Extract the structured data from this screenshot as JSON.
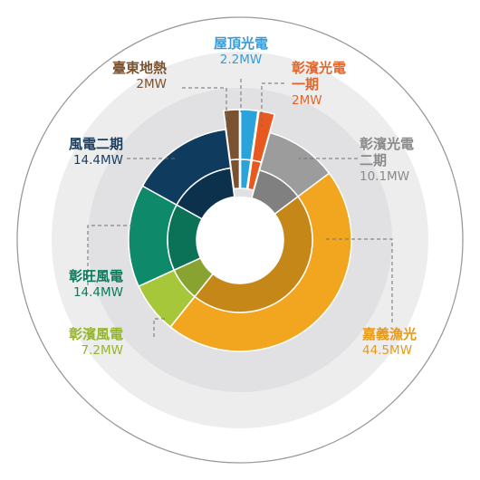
{
  "chart_data": {
    "type": "pie",
    "variant": "donut",
    "unit": "MW",
    "start_angle_deg": 0,
    "direction": "clockwise",
    "series": [
      {
        "name": "屋頂光電",
        "value": 2.2,
        "label": "2.2MW",
        "color": "#2aa3db",
        "exploded": true
      },
      {
        "name": "彰濱光電一期",
        "value": 2,
        "label": "2MW",
        "color": "#e8591f",
        "exploded": true
      },
      {
        "name": "彰濱光電二期",
        "value": 10.1,
        "label": "10.1MW",
        "color": "#9c9c9c",
        "exploded": false
      },
      {
        "name": "嘉義漁光",
        "value": 44.5,
        "label": "44.5MW",
        "color": "#f2a51e",
        "exploded": false
      },
      {
        "name": "彰濱風電",
        "value": 7.2,
        "label": "7.2MW",
        "color": "#a6c73a",
        "exploded": false
      },
      {
        "name": "彰旺風電",
        "value": 14.4,
        "label": "14.4MW",
        "color": "#0e8a6a",
        "exploded": false
      },
      {
        "name": "風電二期",
        "value": 14.4,
        "label": "14.4MW",
        "color": "#0f3c5e",
        "exploded": false
      },
      {
        "name": "臺東地熱",
        "value": 2,
        "label": "2MW",
        "color": "#7a5230",
        "exploded": true
      }
    ]
  },
  "labels": {
    "rooftop": {
      "name": "屋頂光電",
      "value": "2.2MW",
      "color": "#3a9bd5"
    },
    "zb1": {
      "name1": "彰濱光電",
      "name2": "一期",
      "value": "2MW",
      "color": "#e0662b"
    },
    "zb2": {
      "name1": "彰濱光電",
      "name2": "二期",
      "value": "10.1MW",
      "color": "#8a8a8a"
    },
    "chiayi": {
      "name": "嘉義漁光",
      "value": "44.5MW",
      "color": "#e79a1a"
    },
    "zbwind": {
      "name": "彰濱風電",
      "value": "7.2MW",
      "color": "#95b52c"
    },
    "zwwind": {
      "name": "彰旺風電",
      "value": "14.4MW",
      "color": "#0c7a5c"
    },
    "wind2": {
      "name": "風電二期",
      "value": "14.4MW",
      "color": "#1b3e60"
    },
    "taitung": {
      "name": "臺東地熱",
      "value": "2MW",
      "color": "#7a5230"
    }
  }
}
